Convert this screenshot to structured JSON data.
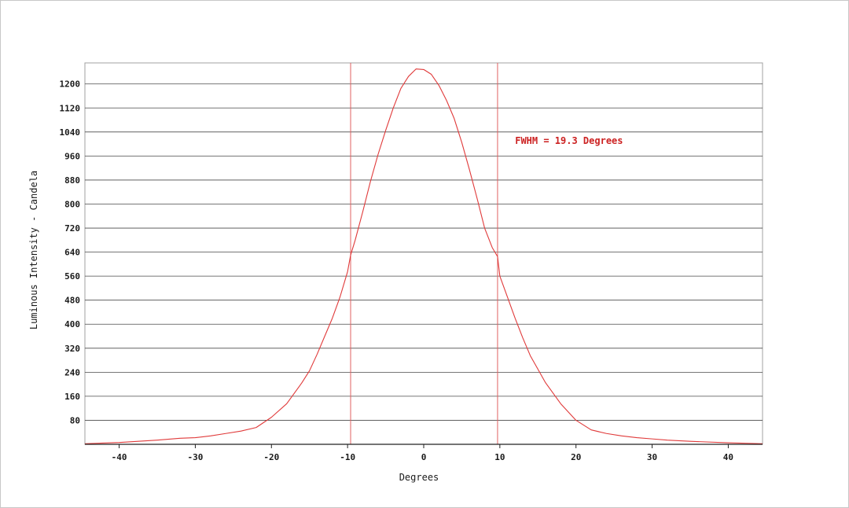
{
  "chart_data": {
    "type": "line",
    "title": "",
    "xlabel": "Degrees",
    "ylabel": "Luminous Intensity - Candela",
    "xlim": [
      -44.5,
      44.5
    ],
    "ylim": [
      0,
      1270
    ],
    "xticks": [
      -40,
      -30,
      -20,
      -10,
      0,
      10,
      20,
      30,
      40
    ],
    "yticks": [
      80,
      160,
      240,
      320,
      400,
      480,
      560,
      640,
      720,
      800,
      880,
      960,
      1040,
      1120,
      1200
    ],
    "grid": "horizontal",
    "series": [
      {
        "color": "#e03a3a",
        "x": [
          -44.5,
          -40,
          -35,
          -32,
          -30,
          -28,
          -26,
          -24,
          -22,
          -20,
          -18,
          -16,
          -15,
          -14,
          -13,
          -12,
          -11,
          -10,
          -9.6,
          -9,
          -8,
          -7,
          -6,
          -5,
          -4,
          -3,
          -2,
          -1,
          0,
          1,
          2,
          3,
          4,
          5,
          6,
          7,
          8,
          9,
          9.7,
          10,
          11,
          12,
          13,
          14,
          15,
          16,
          18,
          20,
          22,
          24,
          26,
          28,
          30,
          32,
          35,
          40,
          44.5
        ],
        "y": [
          2,
          6,
          14,
          20,
          22,
          28,
          36,
          44,
          56,
          90,
          135,
          205,
          245,
          300,
          360,
          420,
          490,
          575,
          630,
          680,
          775,
          875,
          965,
          1045,
          1120,
          1185,
          1225,
          1250,
          1248,
          1232,
          1195,
          1145,
          1085,
          1005,
          915,
          820,
          720,
          655,
          625,
          560,
          490,
          420,
          355,
          295,
          250,
          205,
          135,
          80,
          48,
          36,
          28,
          22,
          18,
          14,
          10,
          5,
          2
        ]
      }
    ],
    "vlines": [
      -9.6,
      9.7
    ],
    "annotation": {
      "text": "FWHM = 19.3 Degrees",
      "x": 12,
      "y": 1000,
      "color": "#cc2222"
    }
  }
}
